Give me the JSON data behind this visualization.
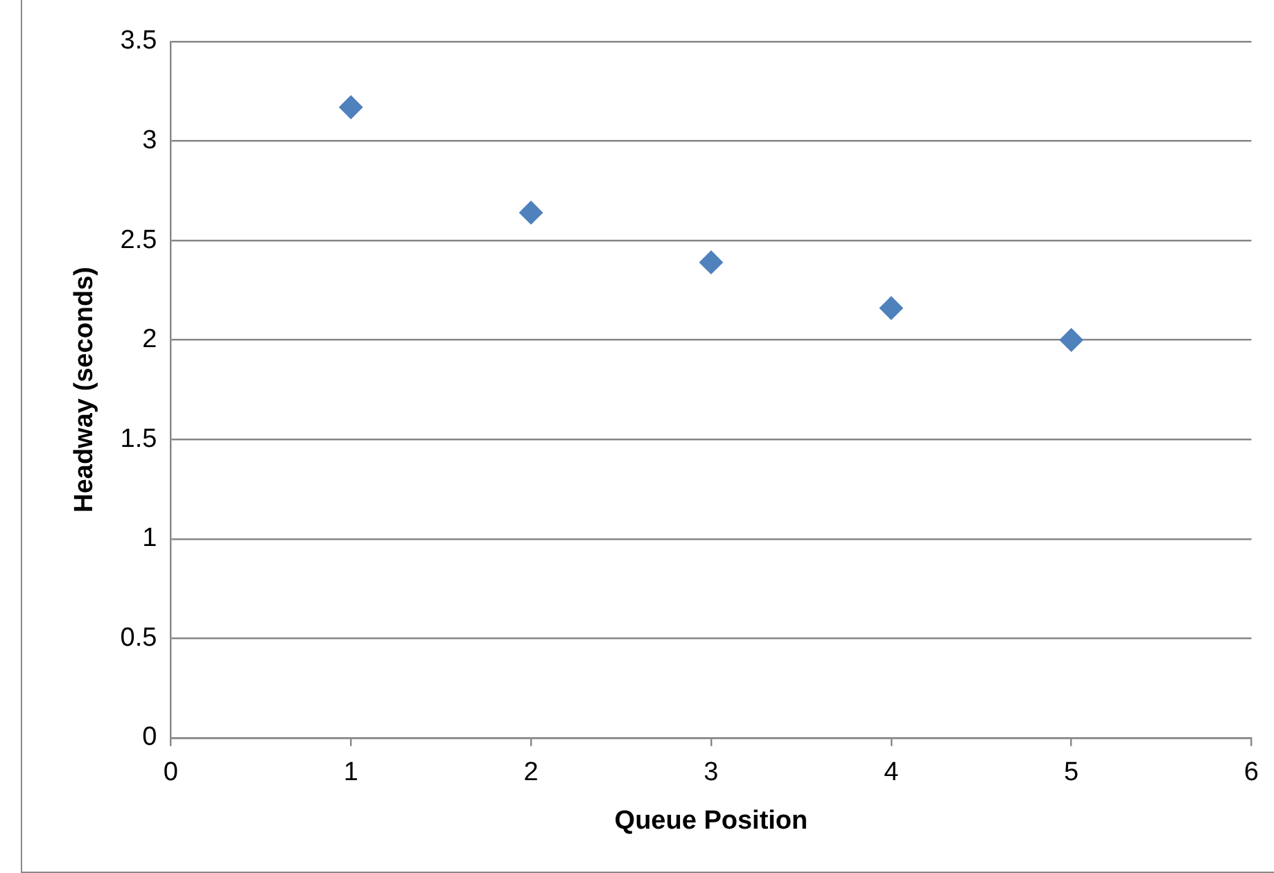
{
  "chart_data": {
    "type": "scatter",
    "xlabel": "Queue Position",
    "ylabel": "Headway (seconds)",
    "x": [
      1,
      2,
      3,
      4,
      5
    ],
    "series": [
      {
        "color": "#4f81bd",
        "values": [
          3.17,
          2.64,
          2.39,
          2.16,
          2.0
        ]
      }
    ],
    "xlim": [
      0,
      6
    ],
    "xticks": [
      0,
      1,
      2,
      3,
      4,
      5,
      6
    ],
    "ylim": [
      0,
      3.5
    ],
    "yticks": [
      0,
      0.5,
      1,
      1.5,
      2,
      2.5,
      3,
      3.5
    ],
    "grid": "y",
    "marker": "diamond"
  }
}
